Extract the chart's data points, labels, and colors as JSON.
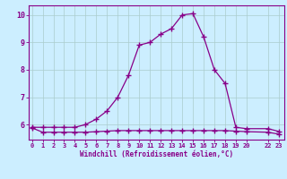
{
  "line1_x": [
    0,
    1,
    2,
    3,
    4,
    5,
    6,
    7,
    8,
    9,
    10,
    11,
    12,
    13,
    14,
    15,
    16,
    17,
    18,
    19,
    20,
    22,
    23
  ],
  "line1_y": [
    5.9,
    5.9,
    5.9,
    5.9,
    5.9,
    6.0,
    6.2,
    6.5,
    7.0,
    7.8,
    8.9,
    9.0,
    9.3,
    9.5,
    10.0,
    10.05,
    9.2,
    8.0,
    7.5,
    5.9,
    5.85,
    5.85,
    5.75
  ],
  "line2_x": [
    0,
    1,
    2,
    3,
    4,
    5,
    6,
    7,
    8,
    9,
    10,
    11,
    12,
    13,
    14,
    15,
    16,
    17,
    18,
    19,
    20,
    22,
    23
  ],
  "line2_y": [
    5.88,
    5.72,
    5.72,
    5.72,
    5.72,
    5.72,
    5.74,
    5.76,
    5.78,
    5.78,
    5.78,
    5.78,
    5.78,
    5.78,
    5.78,
    5.78,
    5.78,
    5.78,
    5.78,
    5.76,
    5.74,
    5.72,
    5.65
  ],
  "line_color": "#880088",
  "bg_color": "#cceeff",
  "grid_color": "#aacccc",
  "xlabel": "Windchill (Refroidissement éolien,°C)",
  "xtick_positions": [
    0,
    1,
    2,
    3,
    4,
    5,
    6,
    7,
    8,
    9,
    10,
    11,
    12,
    13,
    14,
    15,
    16,
    17,
    18,
    19,
    20,
    22,
    23
  ],
  "xtick_labels": [
    "0",
    "1",
    "2",
    "3",
    "4",
    "5",
    "6",
    "7",
    "8",
    "9",
    "10",
    "11",
    "12",
    "13",
    "14",
    "15",
    "16",
    "17",
    "18",
    "19",
    "20",
    "22",
    "23"
  ],
  "yticks": [
    6,
    7,
    8,
    9,
    10
  ],
  "ylim": [
    5.45,
    10.35
  ],
  "xlim": [
    -0.3,
    23.5
  ],
  "marker": "+",
  "markersize": 4,
  "linewidth": 0.9
}
